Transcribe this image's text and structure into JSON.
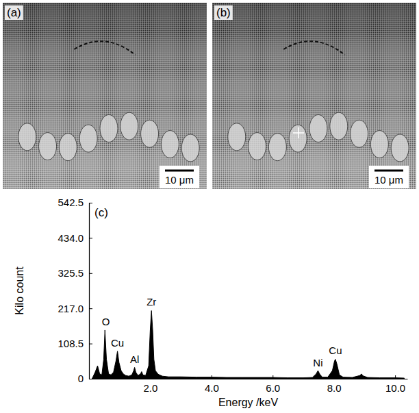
{
  "panels": [
    {
      "label": "(a)",
      "scale_bar": "10 μm"
    },
    {
      "label": "(b)",
      "scale_bar": "10 μm"
    }
  ],
  "chart_data": {
    "type": "area",
    "label": "(c)",
    "x_label": "Energy /keV",
    "y_label": "Kilo count",
    "color": "#000000",
    "x": [
      0.1,
      0.2,
      0.28,
      0.35,
      0.42,
      0.48,
      0.52,
      0.57,
      0.64,
      0.72,
      0.8,
      0.88,
      0.93,
      0.98,
      1.05,
      1.12,
      1.2,
      1.3,
      1.4,
      1.46,
      1.49,
      1.53,
      1.6,
      1.68,
      1.72,
      1.76,
      1.85,
      1.95,
      2.0,
      2.04,
      2.08,
      2.12,
      2.17,
      2.25,
      2.3,
      2.4,
      2.6,
      3.0,
      3.5,
      4.0,
      4.5,
      5.0,
      5.5,
      6.0,
      6.5,
      7.0,
      7.3,
      7.42,
      7.48,
      7.54,
      7.62,
      7.8,
      7.95,
      8.02,
      8.05,
      8.1,
      8.18,
      8.3,
      8.6,
      8.85,
      8.9,
      8.95,
      9.1,
      9.5,
      10.0,
      10.3
    ],
    "values": [
      0,
      20,
      40,
      15,
      12,
      60,
      150,
      60,
      15,
      12,
      20,
      55,
      85,
      50,
      25,
      15,
      10,
      8,
      12,
      25,
      35,
      20,
      10,
      15,
      22,
      12,
      10,
      40,
      150,
      210,
      150,
      60,
      25,
      15,
      12,
      8,
      6,
      6,
      5,
      5,
      4,
      4,
      4,
      4,
      3,
      3,
      4,
      15,
      25,
      14,
      5,
      5,
      25,
      55,
      60,
      45,
      12,
      5,
      4,
      10,
      15,
      9,
      4,
      3,
      3,
      2
    ],
    "xlim": [
      0,
      10.4
    ],
    "xticks": [
      {
        "value": 2,
        "label": "2.0"
      },
      {
        "value": 4,
        "label": "4.0"
      },
      {
        "value": 6,
        "label": "6.0"
      },
      {
        "value": 8,
        "label": "8.0"
      },
      {
        "value": 10,
        "label": "10.0"
      }
    ],
    "ylim": [
      0,
      542.5
    ],
    "yticks": [
      0,
      108.5,
      {
        "value": 217,
        "label": "217.0"
      },
      325.5,
      {
        "value": 434,
        "label": "434.0"
      },
      542.5
    ],
    "annotations": [
      {
        "text": "O",
        "x": 0.55,
        "y": 165
      },
      {
        "text": "Cu",
        "x": 0.93,
        "y": 100
      },
      {
        "text": "Al",
        "x": 1.49,
        "y": 48
      },
      {
        "text": "Zr",
        "x": 2.04,
        "y": 225
      },
      {
        "text": "Ni",
        "x": 7.48,
        "y": 38
      },
      {
        "text": "Cu",
        "x": 8.05,
        "y": 75
      }
    ]
  }
}
